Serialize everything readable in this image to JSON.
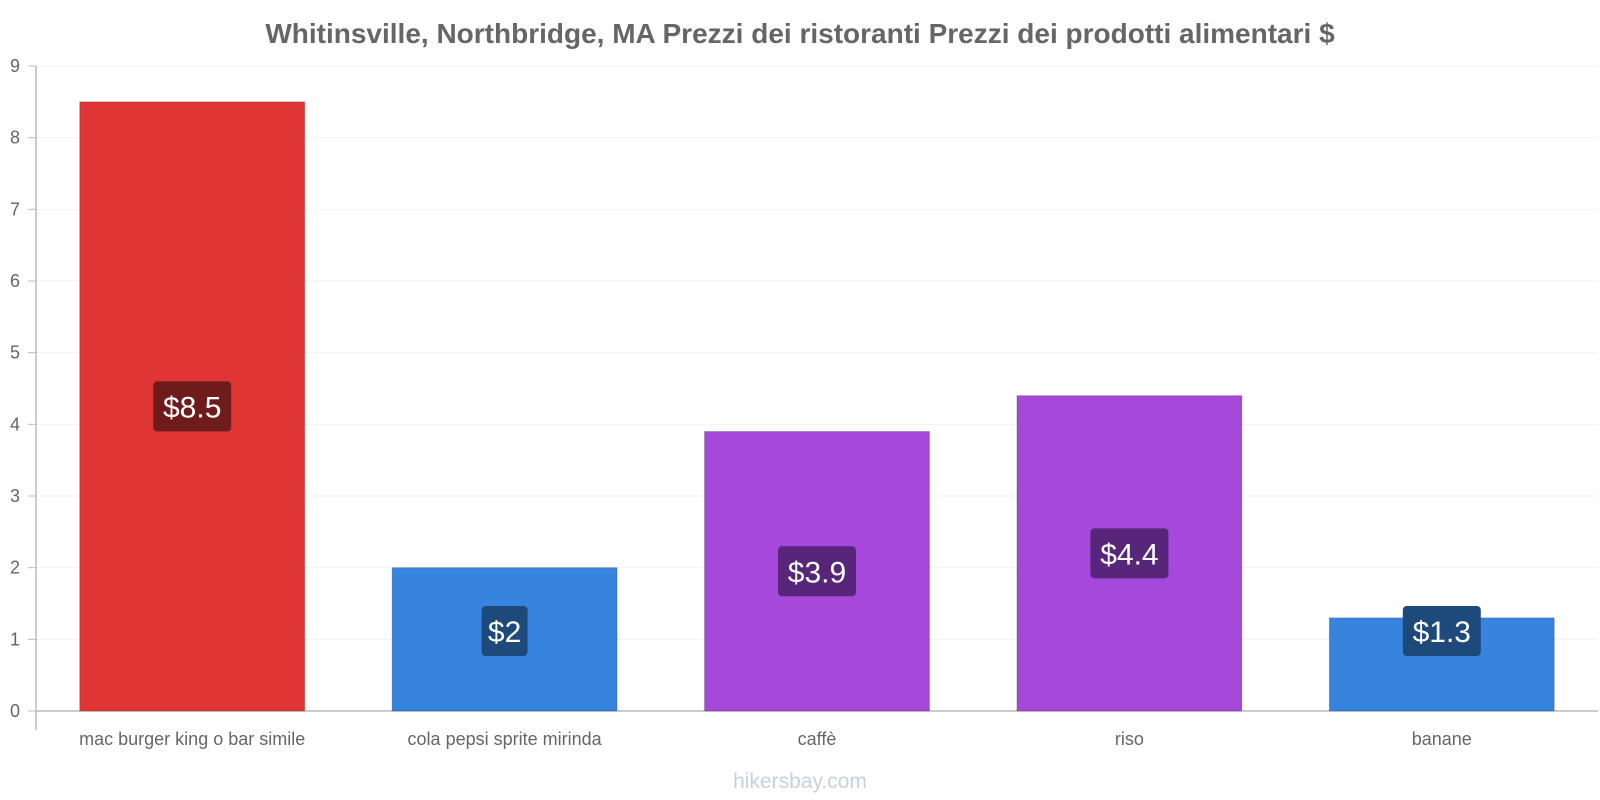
{
  "chart_data": {
    "type": "bar",
    "title": "Whitinsville, Northbridge, MA Prezzi dei ristoranti Prezzi dei prodotti alimentari $",
    "categories": [
      "mac burger king o bar simile",
      "cola pepsi sprite mirinda",
      "caffè",
      "riso",
      "banane"
    ],
    "values": [
      8.5,
      2,
      3.9,
      4.4,
      1.3
    ],
    "data_labels": [
      "$8.5",
      "$2",
      "$3.9",
      "$4.4",
      "$1.3"
    ],
    "bar_colors": [
      "#e03535",
      "#3784df",
      "#a648d9",
      "#a648d9",
      "#3784df"
    ],
    "label_colors": [
      "#6e1b1b",
      "#1d4a7a",
      "#57267a",
      "#57267a",
      "#1d4a7a"
    ],
    "xlabel": "",
    "ylabel": "",
    "ylim": [
      0,
      9
    ],
    "yticks": [
      0,
      1,
      2,
      3,
      4,
      5,
      6,
      7,
      8,
      9
    ],
    "grid": true
  },
  "credit": "hikersbay.com"
}
